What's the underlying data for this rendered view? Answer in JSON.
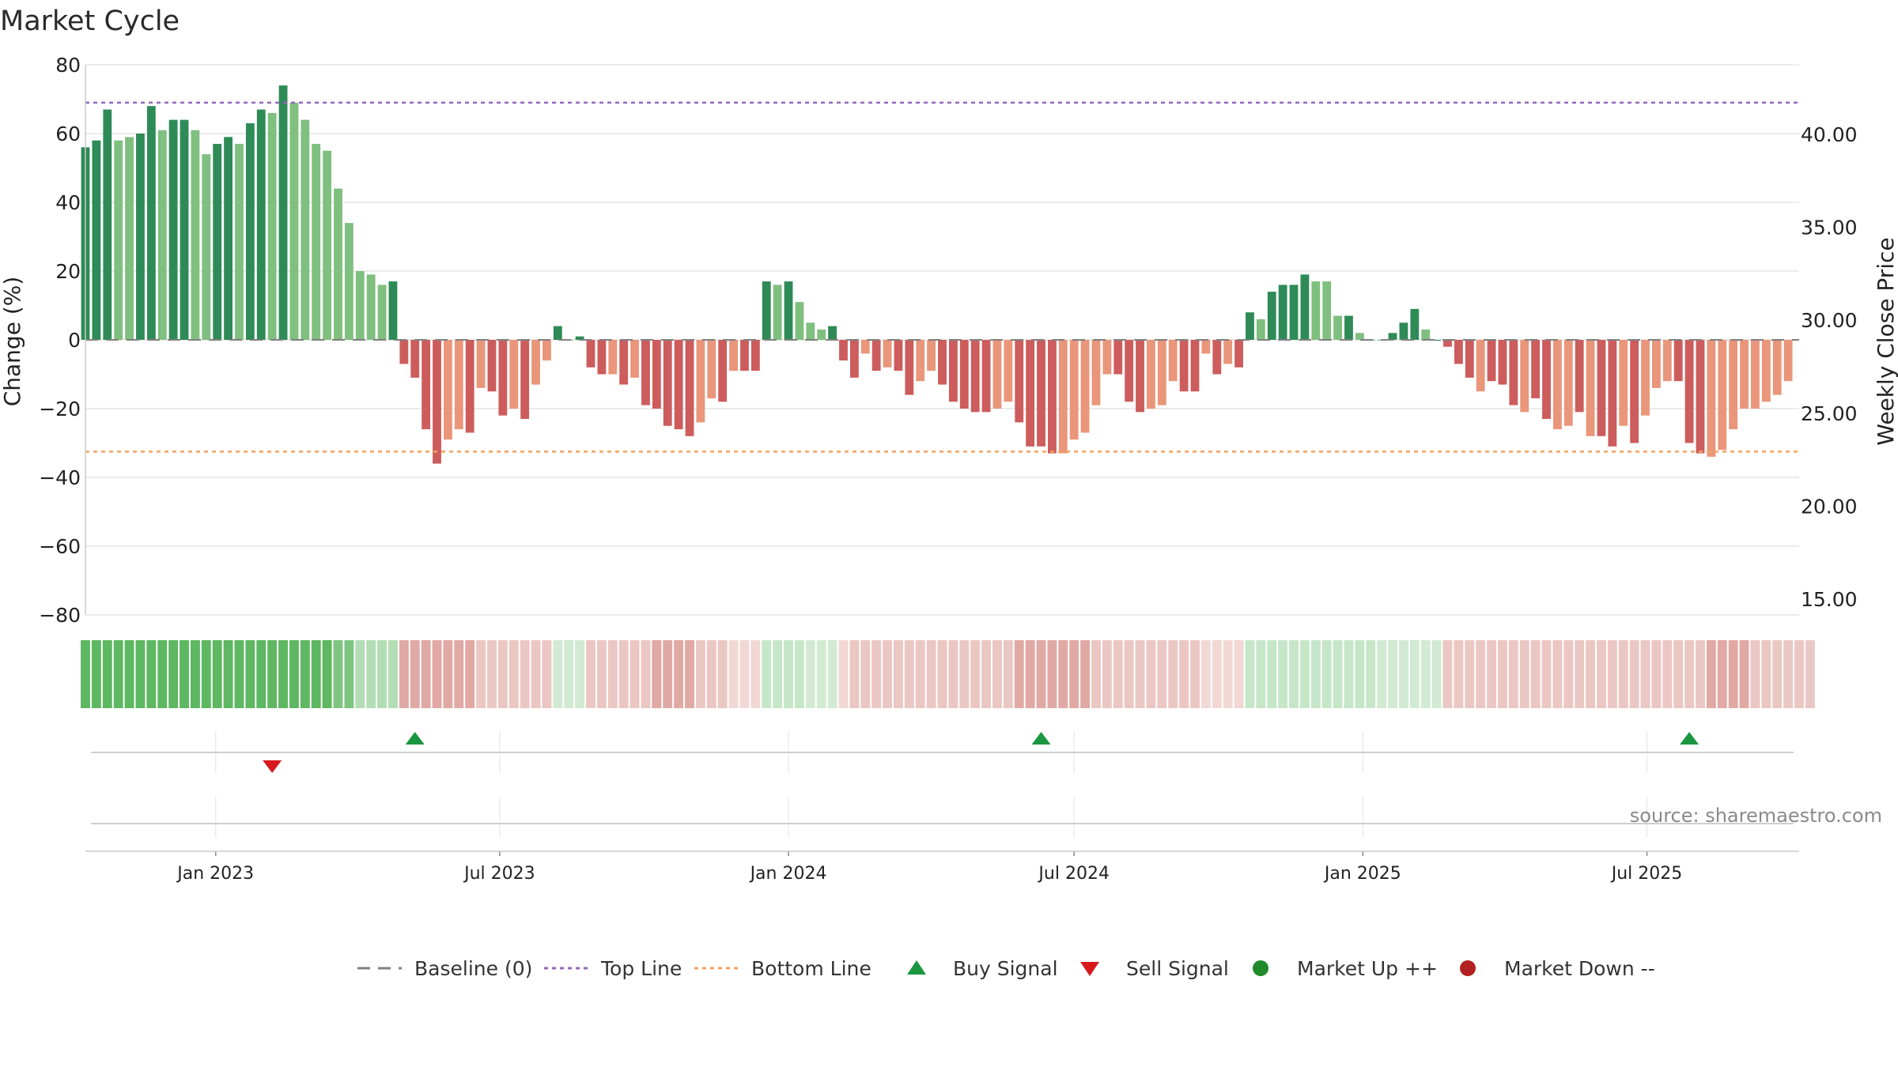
{
  "chart_data": {
    "type": "bar",
    "title": "Market Cycle",
    "ylabel_left": "Change (%)",
    "ylabel_right": "Weekly Close Price",
    "ylim_left": [
      -80,
      80
    ],
    "yticks_left": [
      80,
      60,
      40,
      20,
      0,
      -20,
      -40,
      -60,
      -80
    ],
    "ytick_labels_left": [
      "80",
      "60",
      "40",
      "20",
      "0",
      "−20",
      "−40",
      "−60",
      "−80"
    ],
    "ylim_right": [
      15,
      42
    ],
    "yticks_right": [
      40,
      35,
      30,
      25,
      20,
      15
    ],
    "ytick_labels_right": [
      "40.00",
      "35.00",
      "30.00",
      "25.00",
      "20.00",
      "15.00"
    ],
    "x_range": [
      "2022-10-10",
      "2025-10-06"
    ],
    "x_tick_dates": [
      "2023-01-01",
      "2023-07-01",
      "2024-01-01",
      "2024-07-01",
      "2025-01-01",
      "2025-07-01"
    ],
    "x_tick_labels": [
      "Jan 2023",
      "Jul 2023",
      "Jan 2024",
      "Jul 2024",
      "Jan 2025",
      "Jul 2025"
    ],
    "first_week": "2022-10-10",
    "week_step_days": 7,
    "values": [
      56,
      58,
      67,
      58,
      59,
      60,
      68,
      61,
      64,
      64,
      61,
      54,
      57,
      59,
      57,
      63,
      67,
      66,
      74,
      69,
      64,
      57,
      55,
      44,
      34,
      20,
      19,
      16,
      17,
      -7,
      -11,
      -26,
      -36,
      -29,
      -26,
      -27,
      -14,
      -15,
      -22,
      -20,
      -23,
      -13,
      -6,
      4,
      0,
      1,
      -8,
      -10,
      -10,
      -13,
      -11,
      -19,
      -20,
      -25,
      -26,
      -28,
      -24,
      -17,
      -18,
      -9,
      -9,
      -9,
      17,
      16,
      17,
      11,
      5,
      3,
      4,
      -6,
      -11,
      -4,
      -9,
      -8,
      -9,
      -16,
      -12,
      -9,
      -13,
      -18,
      -20,
      -21,
      -21,
      -20,
      -18,
      -24,
      -31,
      -31,
      -33,
      -33,
      -29,
      -27,
      -19,
      -10,
      -10,
      -18,
      -21,
      -20,
      -19,
      -12,
      -15,
      -15,
      -4,
      -10,
      -7,
      -8,
      8,
      6,
      14,
      16,
      16,
      19,
      17,
      17,
      7,
      7,
      2,
      0,
      0,
      2,
      5,
      9,
      3,
      0,
      -2,
      -7,
      -11,
      -15,
      -12,
      -13,
      -19,
      -21,
      -17,
      -23,
      -26,
      -25,
      -21,
      -28,
      -28,
      -31,
      -25,
      -30,
      -22,
      -14,
      -12,
      -12,
      -30,
      -33,
      -34,
      -32,
      -26,
      -20,
      -20,
      -18,
      -16,
      -12
    ],
    "bar_intensity": [
      1,
      1,
      1,
      0,
      0,
      1,
      1,
      0,
      1,
      1,
      0,
      0,
      1,
      1,
      0,
      1,
      1,
      0,
      1,
      0,
      0,
      0,
      0,
      0,
      0,
      0,
      0,
      0,
      1,
      1,
      1,
      1,
      1,
      0,
      0,
      1,
      0,
      1,
      1,
      0,
      1,
      0,
      0,
      1,
      0,
      1,
      1,
      1,
      0,
      1,
      0,
      1,
      1,
      1,
      1,
      1,
      0,
      0,
      1,
      0,
      1,
      1,
      1,
      0,
      1,
      0,
      0,
      0,
      1,
      1,
      1,
      0,
      1,
      0,
      1,
      1,
      0,
      0,
      1,
      1,
      1,
      1,
      1,
      0,
      0,
      1,
      1,
      1,
      1,
      0,
      0,
      0,
      0,
      0,
      1,
      1,
      1,
      0,
      0,
      0,
      1,
      1,
      0,
      1,
      0,
      1,
      1,
      0,
      1,
      1,
      1,
      1,
      0,
      0,
      0,
      1,
      0,
      0,
      0,
      1,
      1,
      1,
      0,
      1,
      1,
      1,
      1,
      0,
      1,
      1,
      1,
      0,
      1,
      1,
      0,
      0,
      1,
      0,
      1,
      1,
      0,
      1,
      0,
      0,
      0,
      1,
      1,
      1,
      0,
      0,
      0,
      0,
      0,
      0
    ],
    "top_line": 69,
    "bottom_line": -32.5,
    "buy_signals": [
      "2023-05-08",
      "2024-06-10",
      "2025-07-28"
    ],
    "sell_signals": [
      "2023-02-06"
    ],
    "regime_strength": [
      5,
      5,
      5,
      5,
      5,
      5,
      5,
      5,
      5,
      5,
      5,
      5,
      5,
      5,
      5,
      5,
      5,
      5,
      5,
      5,
      5,
      5,
      5,
      4,
      4,
      3,
      3,
      3,
      3,
      -3,
      -3,
      -3,
      -3,
      -3,
      -3,
      -3,
      -2,
      -2,
      -2,
      -2,
      -2,
      -2,
      -2,
      1,
      1,
      1,
      -2,
      -2,
      -2,
      -2,
      -2,
      -2,
      -3,
      -3,
      -3,
      -3,
      -2,
      -2,
      -2,
      -1,
      -1,
      -1,
      2,
      2,
      2,
      2,
      1,
      1,
      1,
      -1,
      -2,
      -2,
      -2,
      -2,
      -2,
      -2,
      -2,
      -2,
      -2,
      -2,
      -2,
      -2,
      -2,
      -2,
      -2,
      -3,
      -3,
      -3,
      -3,
      -3,
      -3,
      -3,
      -2,
      -2,
      -2,
      -2,
      -2,
      -2,
      -2,
      -2,
      -2,
      -2,
      -1,
      -1,
      -1,
      -1,
      2,
      2,
      2,
      2,
      2,
      2,
      2,
      2,
      2,
      2,
      2,
      2,
      1,
      1,
      1,
      1,
      1,
      1,
      -2,
      -2,
      -2,
      -2,
      -2,
      -2,
      -2,
      -2,
      -2,
      -2,
      -2,
      -2,
      -2,
      -2,
      -2,
      -2,
      -2,
      -2,
      -2,
      -2,
      -2,
      -2,
      -2,
      -2,
      -3,
      -3,
      -3,
      -3,
      -2,
      -2,
      -2,
      -2,
      -2,
      -2
    ],
    "legend": [
      {
        "label": "Baseline (0)",
        "symbol": "dash",
        "color": "#808080"
      },
      {
        "label": "Top Line",
        "symbol": "dot",
        "color": "#9467bd"
      },
      {
        "label": "Bottom Line",
        "symbol": "dot",
        "color": "#f4a261"
      },
      {
        "label": "Buy Signal",
        "symbol": "triangle-up",
        "color": "#1a9641"
      },
      {
        "label": "Sell Signal",
        "symbol": "triangle-down",
        "color": "#d7191c"
      },
      {
        "label": "Market Up ++",
        "symbol": "circle",
        "color": "#1f8a2a"
      },
      {
        "label": "Market Down --",
        "symbol": "circle",
        "color": "#b22222"
      }
    ],
    "legend_position": "bottom",
    "grid": true,
    "source": "source: sharemaestro.com",
    "colors": {
      "up_strong": "#2e8b57",
      "up_light": "#7fbf7f",
      "down_strong": "#cd5c5c",
      "down_light": "#e9967a",
      "grid": "#e6e6e6",
      "axis": "#cccccc"
    }
  }
}
